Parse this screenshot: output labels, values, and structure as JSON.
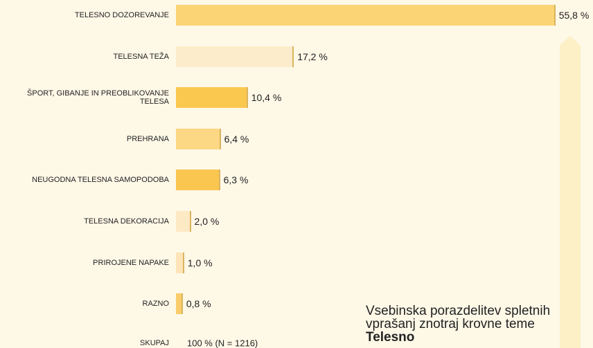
{
  "chart_data": {
    "type": "bar",
    "orientation": "horizontal",
    "categories": [
      "TELESNO DOZOREVANJE",
      "TELESNA TEŽA",
      "ŠPORT, GIBANJE IN PREOBLIKOVANJE TELESA",
      "PREHRANA",
      "NEUGODNA TELESNA SAMOPODOBA",
      "TELESNA  DEKORACIJA",
      "PRIROJENE NAPAKE",
      "RAZNO"
    ],
    "values": [
      55.8,
      17.2,
      10.4,
      6.4,
      6.3,
      2.0,
      1.0,
      0.8
    ],
    "value_labels": [
      "55,8 %",
      "17,2 %",
      "10,4 %",
      "6,4 %",
      "6,3 %",
      "2,0 %",
      "1,0 %",
      "0,8 %"
    ],
    "colors": [
      "#fbd475",
      "#fdeccb",
      "#fbc84f",
      "#fcd784",
      "#fbc650",
      "#fde9c4",
      "#fde5b8",
      "#fbcd6a"
    ],
    "total": {
      "label": "SKUPAJ",
      "value_label": "100 %  (N = 1216)"
    },
    "annotation": {
      "text": "Vsebinska porazdelitev spletnih vprašanj znotraj krovne teme ",
      "bold": "Telesno"
    }
  }
}
